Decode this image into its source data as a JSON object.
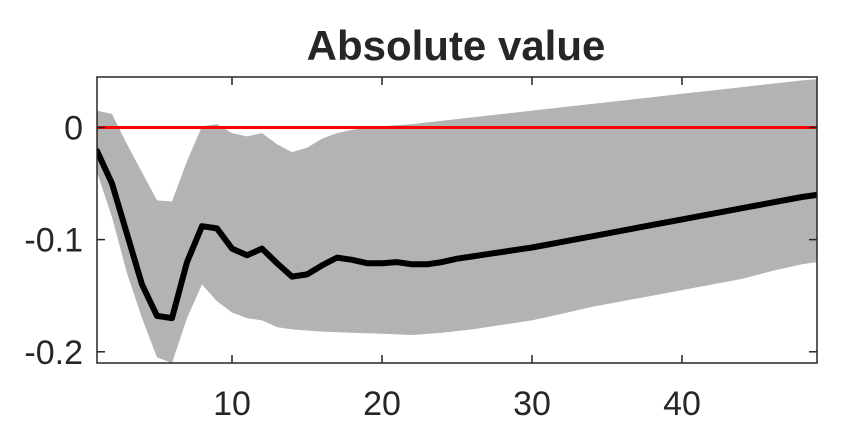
{
  "chart_data": {
    "type": "line",
    "title": "Absolute value",
    "xlabel": "",
    "ylabel": "",
    "xlim": [
      1,
      49
    ],
    "ylim": [
      -0.21,
      0.045
    ],
    "xticks": [
      10,
      20,
      30,
      40
    ],
    "xtick_labels": [
      "10",
      "20",
      "30",
      "40"
    ],
    "yticks": [
      0,
      -0.1,
      -0.2
    ],
    "ytick_labels": [
      "0",
      "-0.1",
      "-0.2"
    ],
    "grid": false,
    "colors": {
      "median": "#000000",
      "band": "#b3b3b3",
      "zero_line": "#ff0000",
      "axes": "#262626"
    },
    "series": [
      {
        "name": "median",
        "x": [
          1,
          2,
          3,
          4,
          5,
          6,
          7,
          8,
          9,
          10,
          11,
          12,
          13,
          14,
          15,
          16,
          17,
          18,
          19,
          20,
          21,
          22,
          23,
          24,
          25,
          26,
          27,
          28,
          29,
          30,
          32,
          34,
          36,
          38,
          40,
          42,
          44,
          46,
          48,
          49
        ],
        "values": [
          -0.021,
          -0.05,
          -0.095,
          -0.14,
          -0.168,
          -0.17,
          -0.12,
          -0.088,
          -0.09,
          -0.108,
          -0.114,
          -0.108,
          -0.121,
          -0.133,
          -0.131,
          -0.123,
          -0.116,
          -0.118,
          -0.121,
          -0.121,
          -0.12,
          -0.122,
          -0.122,
          -0.12,
          -0.117,
          -0.115,
          -0.113,
          -0.111,
          -0.109,
          -0.107,
          -0.102,
          -0.097,
          -0.092,
          -0.087,
          -0.082,
          -0.077,
          -0.072,
          -0.067,
          -0.062,
          -0.06
        ]
      },
      {
        "name": "band_upper",
        "x": [
          1,
          2,
          3,
          4,
          5,
          6,
          7,
          8,
          9,
          10,
          11,
          12,
          13,
          14,
          15,
          16,
          17,
          18,
          20,
          22,
          24,
          26,
          28,
          30,
          32,
          34,
          36,
          38,
          40,
          42,
          44,
          46,
          48,
          49
        ],
        "values": [
          0.015,
          0.012,
          -0.015,
          -0.04,
          -0.065,
          -0.066,
          -0.03,
          0.001,
          0.003,
          -0.005,
          -0.008,
          -0.005,
          -0.015,
          -0.022,
          -0.018,
          -0.01,
          -0.005,
          -0.002,
          0.001,
          0.003,
          0.006,
          0.009,
          0.012,
          0.015,
          0.018,
          0.021,
          0.024,
          0.027,
          0.03,
          0.033,
          0.036,
          0.039,
          0.042,
          0.043
        ]
      },
      {
        "name": "band_lower",
        "x": [
          1,
          2,
          3,
          4,
          5,
          6,
          7,
          8,
          9,
          10,
          11,
          12,
          13,
          14,
          16,
          18,
          20,
          22,
          24,
          26,
          28,
          30,
          32,
          34,
          36,
          38,
          40,
          42,
          44,
          46,
          48,
          49
        ],
        "values": [
          -0.04,
          -0.08,
          -0.13,
          -0.17,
          -0.205,
          -0.21,
          -0.17,
          -0.14,
          -0.155,
          -0.165,
          -0.17,
          -0.172,
          -0.178,
          -0.18,
          -0.182,
          -0.183,
          -0.184,
          -0.185,
          -0.183,
          -0.18,
          -0.176,
          -0.172,
          -0.166,
          -0.16,
          -0.155,
          -0.15,
          -0.145,
          -0.14,
          -0.135,
          -0.128,
          -0.122,
          -0.12
        ]
      },
      {
        "name": "zero_line",
        "x": [
          1,
          49
        ],
        "values": [
          0,
          0
        ]
      }
    ]
  }
}
